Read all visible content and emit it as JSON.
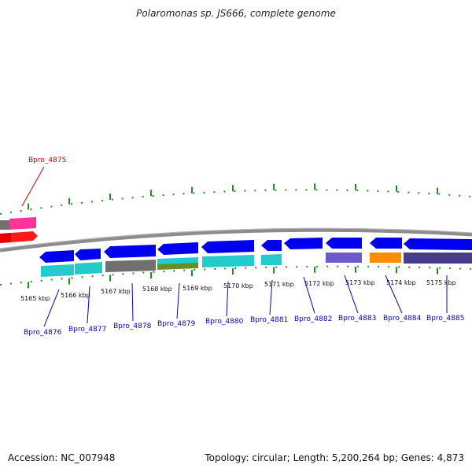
{
  "header": {
    "title": "Polaromonas sp. JS666, complete genome"
  },
  "footer": {
    "accession": "Accession: NC_007948",
    "topology": "Topology: circular; Length: 5,200,264 bp; Genes: 4,873"
  },
  "colors": {
    "backbone": "#8c8c8c",
    "tick": "#228b22",
    "highlight_label": "#cc0000",
    "gene_label": "#0000cc"
  },
  "scale": {
    "unit": "kbp",
    "labels": [
      "5165 kbp",
      "5166 kbp",
      "5167 kbp",
      "5168 kbp",
      "5169 kbp",
      "5170 kbp",
      "5171 kbp",
      "5172 kbp",
      "5173 kbp",
      "5174 kbp",
      "5175 kbp"
    ]
  },
  "gene_labels": {
    "highlighted": "Bpro_4875",
    "others": [
      "Bpro_4876",
      "Bpro_4877",
      "Bpro_4878",
      "Bpro_4879",
      "Bpro_4880",
      "Bpro_4881",
      "Bpro_4882",
      "Bpro_4883",
      "Bpro_4884",
      "Bpro_4885"
    ]
  },
  "legend_colors": {
    "forward_strand_gene": "#ff1a1a",
    "forward_strand_alt": "#ff3399",
    "reverse_strand_gene": "#0000ee",
    "cog_cyan": "#22cccc",
    "cog_gray": "#707070",
    "cog_olive": "#6b8e23",
    "cog_purple": "#6a5acd",
    "cog_orange": "#ff8c00",
    "cog_dark": "#483d8b"
  }
}
